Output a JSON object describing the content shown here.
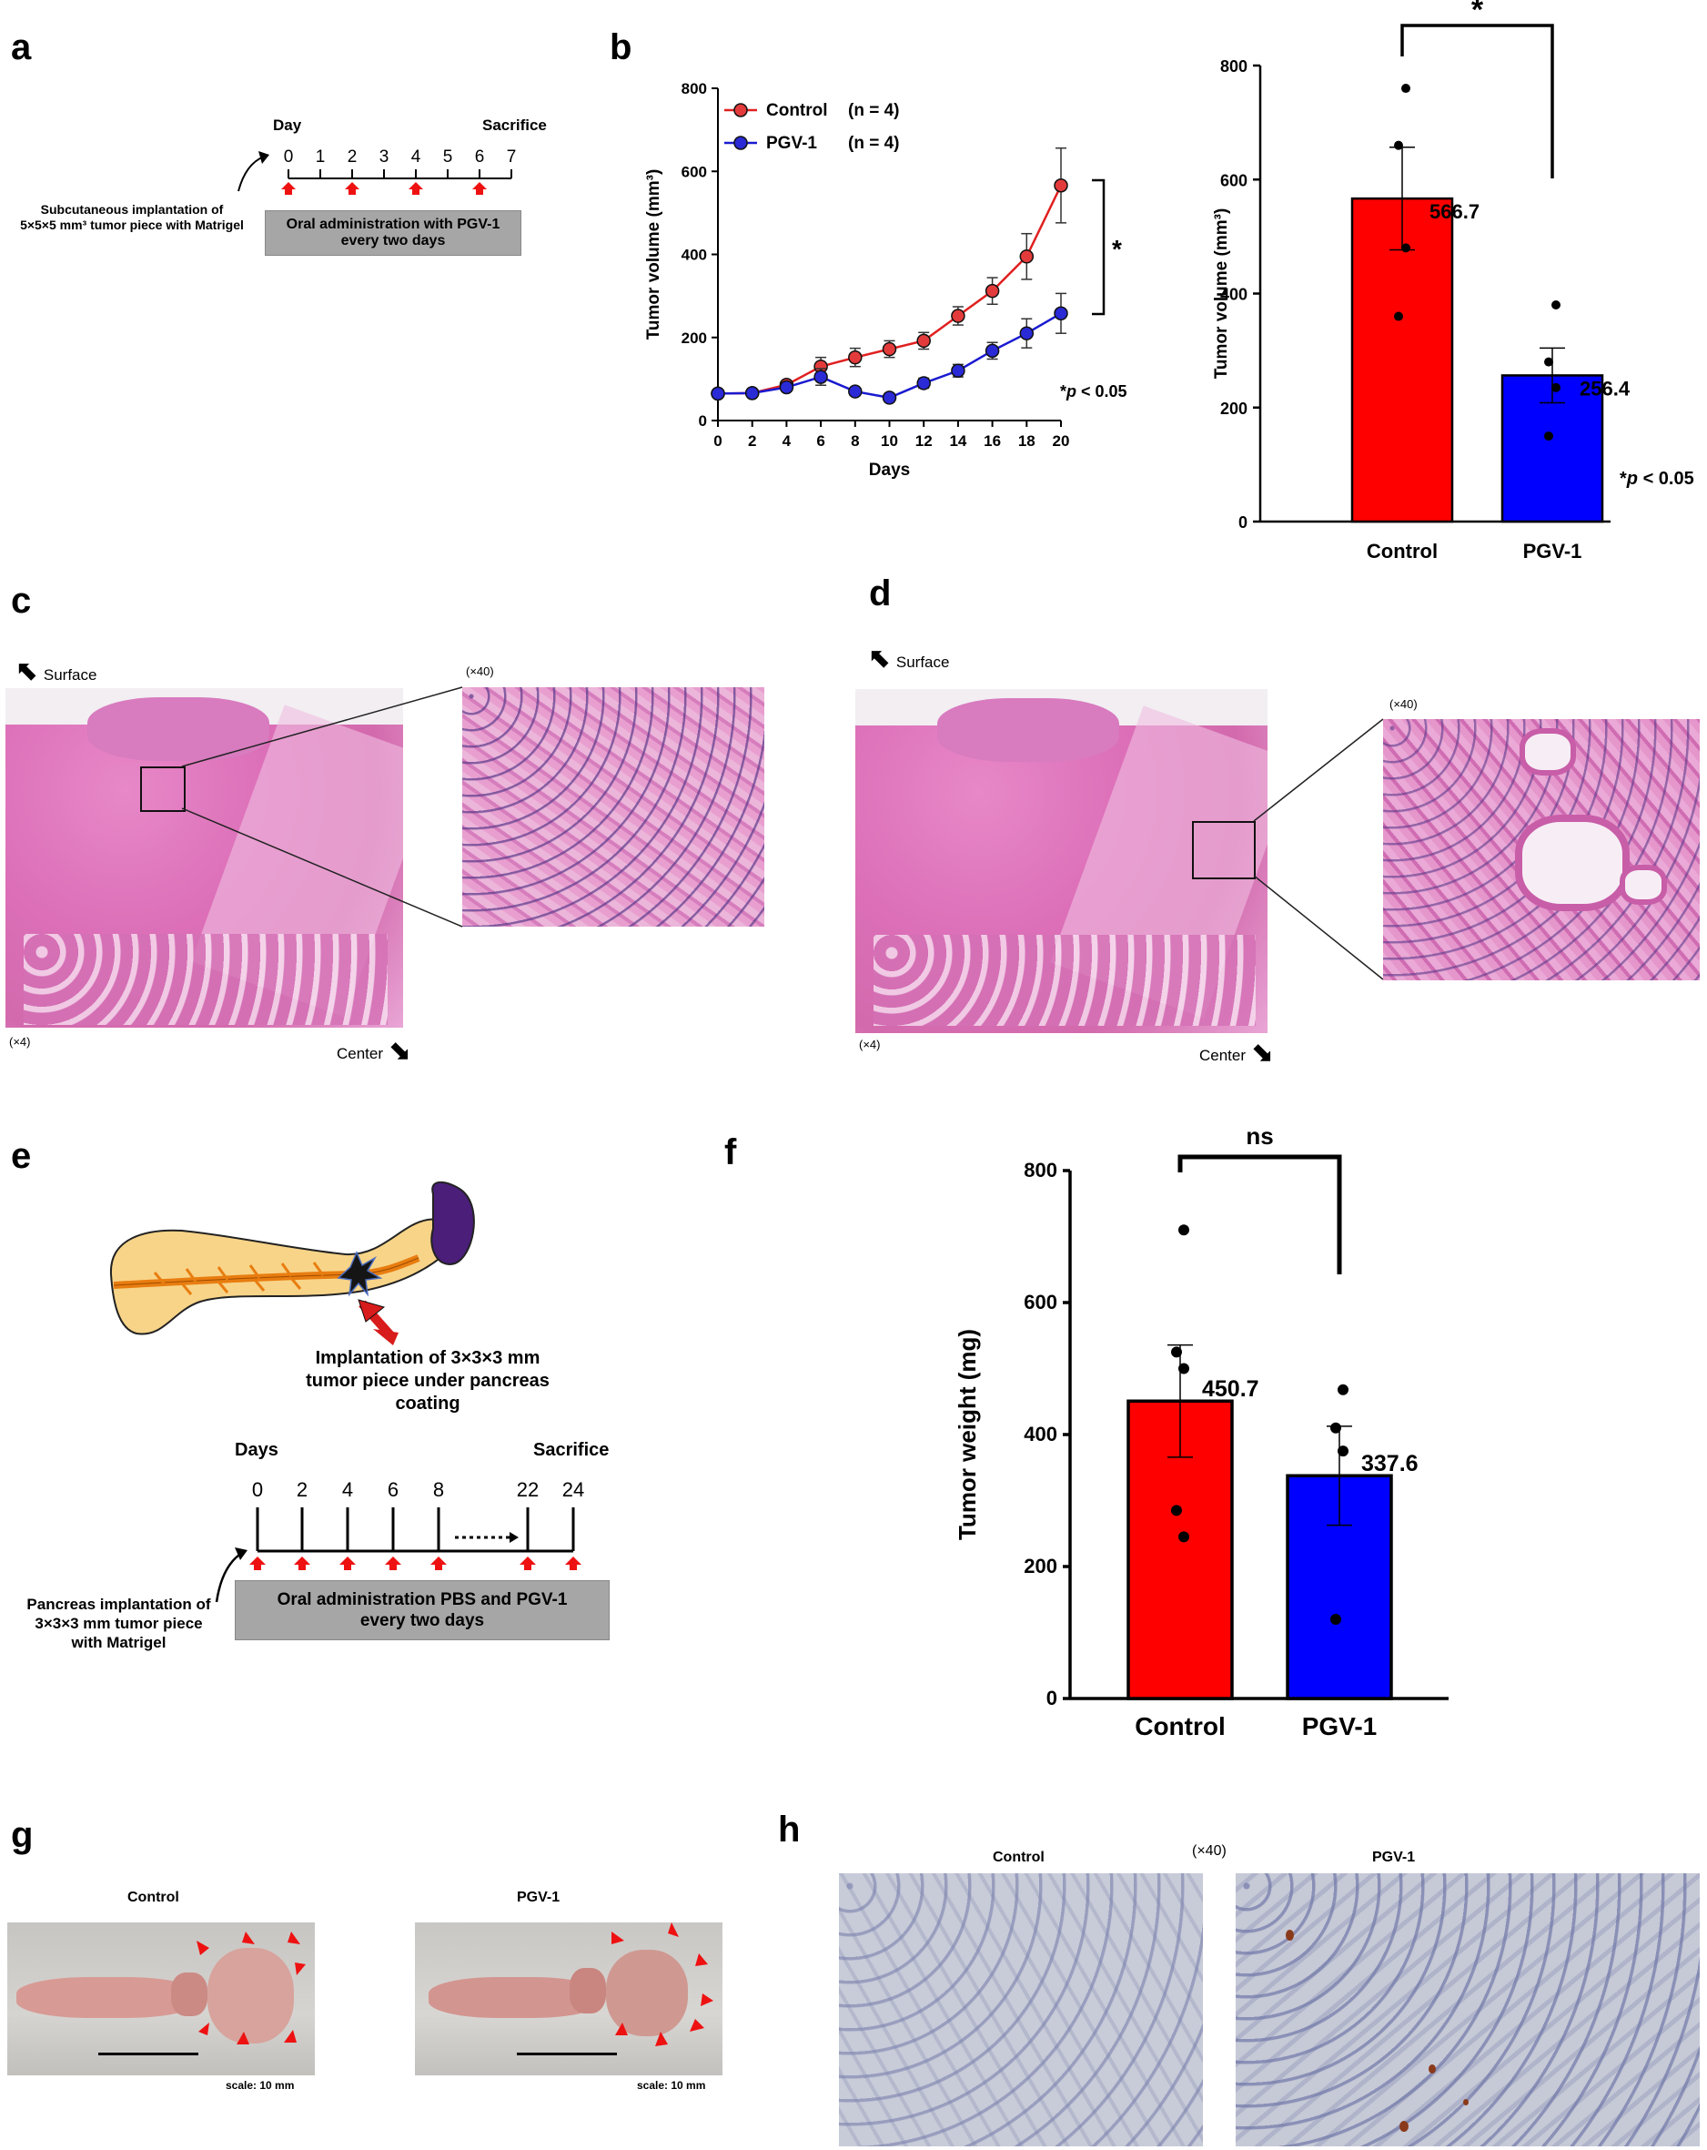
{
  "figure_a": {
    "label": "a",
    "day_label": "Day",
    "sacrifice_label": "Sacrifice",
    "days": [
      "0",
      "1",
      "2",
      "3",
      "4",
      "5",
      "6",
      "7"
    ],
    "implantation_line1": "Subcutaneous implantation of",
    "implantation_line2": "5×5×5 mm³ tumor piece with Matrigel",
    "box_line1": "Oral administration with PGV-1",
    "box_line2": "every two days"
  },
  "figure_b": {
    "label": "b"
  },
  "figure_c": {
    "label": "c",
    "surface": "Surface",
    "center": "Center",
    "mag_low": "(×4)",
    "mag_high": "(×40)"
  },
  "figure_d": {
    "label": "d",
    "surface": "Surface",
    "center": "Center",
    "mag_low": "(×4)",
    "mag_high": "(×40)"
  },
  "figure_e": {
    "label": "e",
    "implant_line1": "Implantation of 3×3×3 mm",
    "implant_line2": "tumor piece under pancreas coating",
    "days_label": "Days",
    "sacrifice_label": "Sacrifice",
    "days": [
      "0",
      "2",
      "4",
      "6",
      "8",
      "22",
      "24"
    ],
    "left_line1": "Pancreas implantation of",
    "left_line2": "3×3×3 mm tumor piece",
    "left_line3": "with Matrigel",
    "box_line1": "Oral administration PBS and PGV-1",
    "box_line2": "every two days"
  },
  "figure_f": {
    "label": "f"
  },
  "figure_g": {
    "label": "g",
    "control_title": "Control",
    "pgv_title": "PGV-1",
    "scale_control": "scale: 10 mm",
    "scale_pgv": "scale: 10 mm"
  },
  "figure_h": {
    "label": "h",
    "control_title": "Control",
    "pgv_title": "PGV-1",
    "mag": "(×40)"
  },
  "colors": {
    "control": "#ff0000",
    "pgv": "#0000ff",
    "line_control": "#e02020",
    "line_pgv": "#1a1ad0"
  },
  "chart_data": [
    {
      "id": "b-line",
      "type": "line",
      "xlabel": "Days",
      "ylabel": "Tumor volume (mm³)",
      "x": [
        0,
        2,
        4,
        6,
        8,
        10,
        12,
        14,
        16,
        18,
        20
      ],
      "xlim": [
        0,
        20
      ],
      "ylim": [
        0,
        800
      ],
      "yticks": [
        0,
        200,
        400,
        600,
        800
      ],
      "series": [
        {
          "name": "Control",
          "n_label": "(n = 4)",
          "values": [
            65,
            66,
            86,
            130,
            152,
            172,
            192,
            252,
            312,
            395,
            566
          ],
          "errors": [
            0,
            0,
            8,
            22,
            22,
            20,
            20,
            22,
            32,
            55,
            90
          ]
        },
        {
          "name": "PGV-1",
          "n_label": "(n = 4)",
          "values": [
            65,
            66,
            80,
            105,
            70,
            55,
            90,
            120,
            168,
            210,
            258
          ],
          "errors": [
            0,
            0,
            8,
            20,
            8,
            10,
            12,
            15,
            20,
            35,
            48
          ]
        }
      ],
      "significance": "*",
      "annotation_p": "p",
      "annotation": "< 0.05"
    },
    {
      "id": "b-bar",
      "type": "bar",
      "categories": [
        "Control",
        "PGV-1"
      ],
      "values": [
        566.7,
        256.4
      ],
      "value_labels": [
        "566.7",
        "256.4"
      ],
      "errors": [
        90,
        48
      ],
      "points": [
        [
          760,
          660,
          480,
          360
        ],
        [
          380,
          280,
          235,
          150
        ]
      ],
      "ylabel": "Tumor volume (mm³)",
      "ylim": [
        0,
        800
      ],
      "yticks": [
        0,
        200,
        400,
        600,
        800
      ],
      "significance": "*",
      "annotation_p": "p",
      "annotation": "< 0.05"
    },
    {
      "id": "f-bar",
      "type": "bar",
      "categories": [
        "Control",
        "PGV-1"
      ],
      "values": [
        450.7,
        337.6
      ],
      "value_labels": [
        "450.7",
        "337.6"
      ],
      "errors": [
        85,
        75
      ],
      "points": [
        [
          710,
          525,
          500,
          285,
          245
        ],
        [
          468,
          410,
          375,
          120
        ]
      ],
      "ylabel": "Tumor weight (mg)",
      "ylim": [
        0,
        800
      ],
      "yticks": [
        0,
        200,
        400,
        600,
        800
      ],
      "significance": "ns"
    }
  ]
}
